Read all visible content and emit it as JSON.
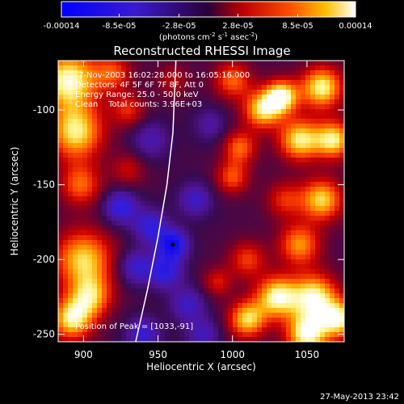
{
  "chart_data": {
    "type": "heatmap",
    "title": "Reconstructed RHESSI Image",
    "xlabel": "Heliocentric X (arcsec)",
    "ylabel": "Heliocentric Y (arcsec)",
    "xlim": [
      883,
      1075
    ],
    "ylim": [
      -255,
      -67
    ],
    "x_ticks": [
      900,
      950,
      1000,
      1050
    ],
    "y_ticks": [
      -100,
      -150,
      -200,
      -250
    ],
    "colorbar": {
      "ticks": [
        "-0.00014",
        "-8.5e-05",
        "-2.8e-05",
        "2.8e-05",
        "8.5e-05",
        "0.00014"
      ],
      "values": [
        -0.00014,
        -8.5e-05,
        -2.8e-05,
        2.8e-05,
        8.5e-05,
        0.00014
      ],
      "unit_label": "(photons cm",
      "unit_sup1": "-2",
      "unit_mid1": " s",
      "unit_sup2": "-1",
      "unit_mid2": " asec",
      "unit_sup3": "-2",
      "unit_end": ")"
    },
    "annotations": {
      "line1": "7-Nov-2003 16:02:28.000 to 16:05:16.000",
      "line2": "Detectors: 4F 5F 6F 7F 8F, Att 0",
      "line3": "Energy Range: 25.0 - 50.0 keV",
      "line4": "Clean    Total counts: 3.96E+03",
      "peak": "Position of Peak = [1033,-91]"
    },
    "peak": [
      1033,
      -91
    ],
    "limb": [
      [
        935,
        -255
      ],
      [
        943,
        -220
      ],
      [
        950,
        -185
      ],
      [
        956,
        -150
      ],
      [
        960,
        -115
      ],
      [
        962,
        -67
      ]
    ],
    "sources": [
      {
        "x": 890,
        "y": -80,
        "v": 1.0,
        "s": 14
      },
      {
        "x": 895,
        "y": -115,
        "v": 0.9,
        "s": 13
      },
      {
        "x": 898,
        "y": -150,
        "v": 0.6,
        "s": 10
      },
      {
        "x": 900,
        "y": -200,
        "v": 0.85,
        "s": 14
      },
      {
        "x": 905,
        "y": -225,
        "v": 0.7,
        "s": 10
      },
      {
        "x": 892,
        "y": -240,
        "v": 0.9,
        "s": 10
      },
      {
        "x": 920,
        "y": -75,
        "v": 0.5,
        "s": 9
      },
      {
        "x": 930,
        "y": -100,
        "v": 0.45,
        "s": 8
      },
      {
        "x": 930,
        "y": -140,
        "v": 0.35,
        "s": 8
      },
      {
        "x": 1000,
        "y": -80,
        "v": 0.6,
        "s": 9
      },
      {
        "x": 1020,
        "y": -100,
        "v": 0.85,
        "s": 9
      },
      {
        "x": 1033,
        "y": -91,
        "v": 1.0,
        "s": 8
      },
      {
        "x": 1060,
        "y": -85,
        "v": 0.95,
        "s": 10
      },
      {
        "x": 1045,
        "y": -120,
        "v": 0.9,
        "s": 10
      },
      {
        "x": 1068,
        "y": -120,
        "v": 0.9,
        "s": 9
      },
      {
        "x": 1005,
        "y": -125,
        "v": 0.6,
        "s": 8
      },
      {
        "x": 1000,
        "y": -145,
        "v": 0.55,
        "s": 8
      },
      {
        "x": 1035,
        "y": -160,
        "v": 0.45,
        "s": 9
      },
      {
        "x": 1060,
        "y": -160,
        "v": 0.85,
        "s": 10
      },
      {
        "x": 1045,
        "y": -190,
        "v": 0.7,
        "s": 10
      },
      {
        "x": 1010,
        "y": -200,
        "v": 0.5,
        "s": 9
      },
      {
        "x": 1030,
        "y": -225,
        "v": 0.95,
        "s": 10
      },
      {
        "x": 1055,
        "y": -225,
        "v": 0.95,
        "s": 11
      },
      {
        "x": 1050,
        "y": -250,
        "v": 1.0,
        "s": 10
      },
      {
        "x": 1010,
        "y": -240,
        "v": 0.85,
        "s": 9
      },
      {
        "x": 990,
        "y": -215,
        "v": 0.4,
        "s": 7
      },
      {
        "x": 1072,
        "y": -240,
        "v": 0.9,
        "s": 9
      },
      {
        "x": 960,
        "y": -80,
        "v": 0.3,
        "s": 8
      },
      {
        "x": 945,
        "y": -120,
        "v": -0.35,
        "s": 9
      },
      {
        "x": 925,
        "y": -165,
        "v": -0.6,
        "s": 8
      },
      {
        "x": 945,
        "y": -178,
        "v": -0.55,
        "s": 8
      },
      {
        "x": 960,
        "y": -190,
        "v": -0.85,
        "s": 7
      },
      {
        "x": 955,
        "y": -208,
        "v": -0.6,
        "s": 8
      },
      {
        "x": 935,
        "y": -205,
        "v": -0.5,
        "s": 8
      },
      {
        "x": 975,
        "y": -160,
        "v": -0.45,
        "s": 8
      },
      {
        "x": 970,
        "y": -230,
        "v": -0.45,
        "s": 8
      },
      {
        "x": 940,
        "y": -250,
        "v": -0.5,
        "s": 8
      },
      {
        "x": 980,
        "y": -250,
        "v": -0.4,
        "s": 8
      },
      {
        "x": 985,
        "y": -110,
        "v": -0.3,
        "s": 8
      }
    ]
  },
  "footer": {
    "timestamp": "27-May-2013 23:42"
  }
}
